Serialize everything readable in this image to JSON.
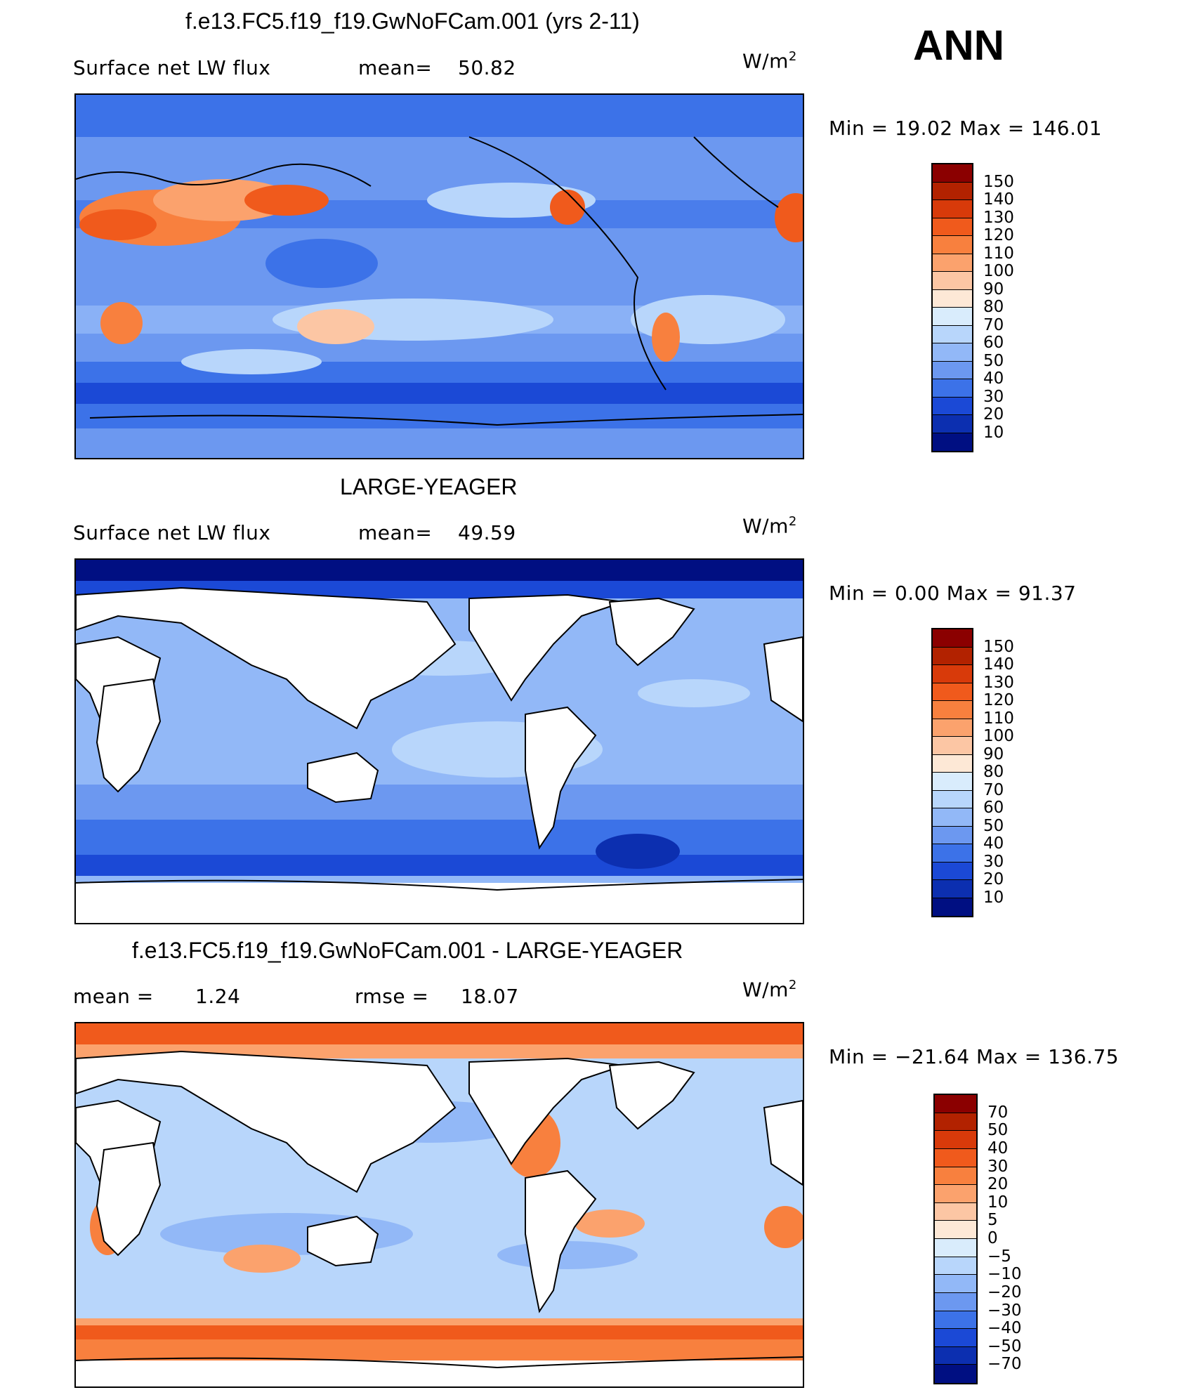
{
  "season": "ANN",
  "panels": [
    {
      "title": "f.e13.FC5.f19_f19.GwNoFCam.001 (yrs 2-11)",
      "left_label": "Surface net LW flux",
      "stat1_label": "mean=",
      "stat1_value": "50.82",
      "stat2_label": "",
      "stat2_value": "",
      "units": "W/m",
      "units_sup": "2",
      "min_max": "Min =   19.02 Max = 146.01",
      "colorbar_labels": [
        "150",
        "140",
        "130",
        "120",
        "110",
        "100",
        "90",
        "80",
        "70",
        "60",
        "50",
        "40",
        "30",
        "20",
        "10"
      ],
      "colorbar_colors": [
        "#8b0000",
        "#b22200",
        "#d83a0a",
        "#f05a1c",
        "#f8803e",
        "#fba26d",
        "#fcc6a4",
        "#fde8d6",
        "#d9ecfc",
        "#b8d6fb",
        "#92b8f7",
        "#6c98f0",
        "#3c72e8",
        "#1b49d6",
        "#0c2fb0",
        "#000f82"
      ]
    },
    {
      "title": "LARGE-YEAGER",
      "left_label": "Surface net LW flux",
      "stat1_label": "mean=",
      "stat1_value": "49.59",
      "stat2_label": "",
      "stat2_value": "",
      "units": "W/m",
      "units_sup": "2",
      "min_max": "Min =    0.00 Max =   91.37",
      "colorbar_labels": [
        "150",
        "140",
        "130",
        "120",
        "110",
        "100",
        "90",
        "80",
        "70",
        "60",
        "50",
        "40",
        "30",
        "20",
        "10"
      ],
      "colorbar_colors": [
        "#8b0000",
        "#b22200",
        "#d83a0a",
        "#f05a1c",
        "#f8803e",
        "#fba26d",
        "#fcc6a4",
        "#fde8d6",
        "#d9ecfc",
        "#b8d6fb",
        "#92b8f7",
        "#6c98f0",
        "#3c72e8",
        "#1b49d6",
        "#0c2fb0",
        "#000f82"
      ]
    },
    {
      "title": "f.e13.FC5.f19_f19.GwNoFCam.001 - LARGE-YEAGER",
      "left_label": "mean =",
      "stat1_label": "",
      "stat1_value": "1.24",
      "stat2_label": "rmse =",
      "stat2_value": "18.07",
      "units": "W/m",
      "units_sup": "2",
      "min_max": "Min = −21.64 Max = 136.75",
      "colorbar_labels": [
        "70",
        "50",
        "40",
        "30",
        "20",
        "10",
        "5",
        "0",
        "−5",
        "−10",
        "−20",
        "−30",
        "−40",
        "−50",
        "−70"
      ],
      "colorbar_colors": [
        "#8b0000",
        "#b22200",
        "#d83a0a",
        "#f05a1c",
        "#f8803e",
        "#fba26d",
        "#fcc6a4",
        "#fde8d6",
        "#d9ecfc",
        "#b8d6fb",
        "#92b8f7",
        "#6c98f0",
        "#3c72e8",
        "#1b49d6",
        "#0c2fb0",
        "#000f82"
      ]
    }
  ]
}
